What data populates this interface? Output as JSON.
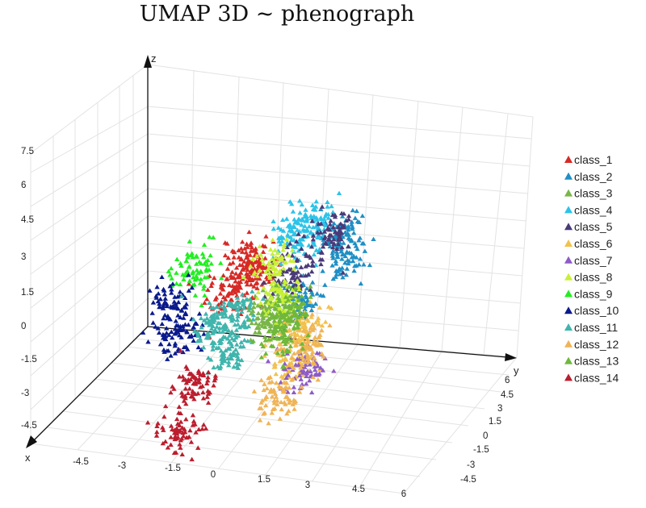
{
  "chart_data": {
    "type": "scatter",
    "title": "UMAP 3D ~ phenograph",
    "marker": "triangle",
    "axes": {
      "x": {
        "label": "x",
        "ticks": [
          "-4.5",
          "-3",
          "-1.5",
          "0",
          "1.5",
          "3",
          "4.5",
          "6"
        ]
      },
      "y": {
        "label": "y",
        "ticks": [
          "6",
          "4.5",
          "3",
          "1.5",
          "0",
          "-1.5",
          "-3",
          "-4.5"
        ]
      },
      "z": {
        "label": "z",
        "ticks": [
          "7.5",
          "6",
          "4.5",
          "3",
          "1.5",
          "0",
          "-1.5",
          "-3",
          "-4.5"
        ]
      }
    },
    "grid": true,
    "legend_position": "right",
    "series": [
      {
        "name": "class_1",
        "color": "#d62a26",
        "clusters": [
          [
            -1.8,
            2.6,
            3.3
          ],
          [
            -0.6,
            2.2,
            3.2
          ],
          [
            -1.2,
            0.8,
            2.4
          ]
        ]
      },
      {
        "name": "class_2",
        "color": "#1f8fc4",
        "clusters": [
          [
            2.4,
            4.6,
            4.3
          ],
          [
            3.6,
            3.8,
            3.6
          ],
          [
            2.4,
            1.6,
            2.0
          ]
        ]
      },
      {
        "name": "class_3",
        "color": "#7ab648",
        "clusters": [
          [
            1.2,
            1.6,
            1.7
          ],
          [
            0.4,
            1.8,
            1.0
          ]
        ]
      },
      {
        "name": "class_4",
        "color": "#2cc3e8",
        "clusters": [
          [
            0.2,
            4.0,
            4.2
          ],
          [
            0.8,
            4.8,
            4.6
          ]
        ]
      },
      {
        "name": "class_5",
        "color": "#4a3a78",
        "clusters": [
          [
            2.0,
            4.6,
            4.3
          ],
          [
            1.0,
            2.8,
            2.8
          ]
        ]
      },
      {
        "name": "class_6",
        "color": "#f2c14e",
        "clusters": [
          [
            3.0,
            1.0,
            1.0
          ],
          [
            3.2,
            0.2,
            -0.2
          ]
        ]
      },
      {
        "name": "class_7",
        "color": "#8e5bc6",
        "clusters": [
          [
            4.2,
            -0.4,
            -0.6
          ]
        ]
      },
      {
        "name": "class_8",
        "color": "#c8f036",
        "clusters": [
          [
            0.0,
            2.8,
            3.2
          ],
          [
            0.8,
            2.2,
            2.0
          ]
        ]
      },
      {
        "name": "class_9",
        "color": "#22ee22",
        "clusters": [
          [
            -4.4,
            2.2,
            3.0
          ]
        ]
      },
      {
        "name": "class_10",
        "color": "#0a1a8c",
        "clusters": [
          [
            -4.6,
            0.4,
            1.8
          ],
          [
            -3.8,
            0.0,
            0.6
          ]
        ]
      },
      {
        "name": "class_11",
        "color": "#3fb5ad",
        "clusters": [
          [
            -2.0,
            0.6,
            0.8
          ],
          [
            -1.4,
            1.4,
            1.2
          ],
          [
            -1.0,
            0.4,
            -0.2
          ]
        ]
      },
      {
        "name": "class_12",
        "color": "#f0b456",
        "clusters": [
          [
            3.0,
            -0.6,
            -1.6
          ],
          [
            3.6,
            0.6,
            0.4
          ]
        ]
      },
      {
        "name": "class_13",
        "color": "#6fb83a",
        "clusters": [
          [
            1.8,
            1.8,
            1.4
          ],
          [
            2.0,
            0.8,
            0.8
          ]
        ]
      },
      {
        "name": "class_14",
        "color": "#bb1e2e",
        "clusters": [
          [
            -2.4,
            -0.6,
            -1.6
          ],
          [
            -2.2,
            -1.8,
            -3.4
          ]
        ]
      }
    ]
  }
}
